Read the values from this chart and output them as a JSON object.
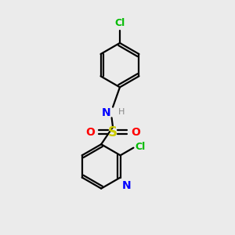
{
  "background_color": "#ebebeb",
  "bond_color": "#000000",
  "atom_colors": {
    "Cl_top": "#00bb00",
    "N": "#0000ff",
    "H": "#888888",
    "S": "#cccc00",
    "O": "#ff0000",
    "Cl_right": "#00bb00",
    "N_pyridine": "#0000ff"
  },
  "figsize": [
    3.0,
    3.0
  ],
  "dpi": 100,
  "xlim": [
    0,
    10
  ],
  "ylim": [
    0,
    10
  ]
}
